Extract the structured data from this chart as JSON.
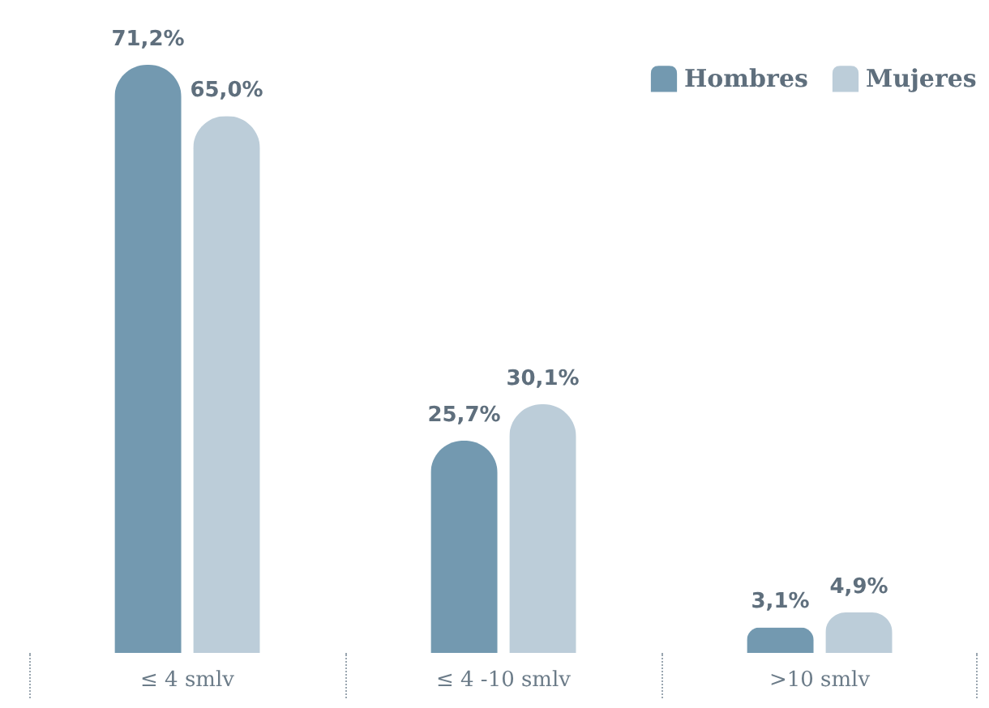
{
  "chart_data": {
    "type": "bar",
    "categories": [
      "≤ 4 smlv",
      "≤ 4 -10 smlv",
      ">10 smlv"
    ],
    "series": [
      {
        "name": "Hombres",
        "color": "#7399b0",
        "values": [
          71.2,
          25.7,
          3.1
        ],
        "value_labels": [
          "71,2%",
          "25,7%",
          "3,1%"
        ]
      },
      {
        "name": "Mujeres",
        "color": "#bccdd9",
        "values": [
          65.0,
          30.1,
          4.9
        ],
        "value_labels": [
          "65,0%",
          "30,1%",
          "4,9%"
        ]
      }
    ],
    "legend": "top right",
    "tick_labels": "x",
    "grid": false
  }
}
